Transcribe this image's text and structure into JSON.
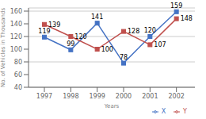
{
  "chart_data": {
    "type": "line",
    "xlabel": "Years",
    "ylabel": "No. of Vehicles in Thousands",
    "x": [
      1997,
      1998,
      1999,
      2000,
      2001,
      2002
    ],
    "xlim": [
      1996.4,
      2002.7
    ],
    "xticks": [
      1997,
      1998,
      1999,
      2000,
      2001,
      2002
    ],
    "ylim": [
      40,
      165
    ],
    "yticks": [
      40,
      60,
      80,
      100,
      120,
      140,
      160
    ],
    "series": [
      {
        "name": "X",
        "color": "#4472C4",
        "marker": "square",
        "values": [
          119,
          99,
          141,
          78,
          120,
          159
        ]
      },
      {
        "name": "Y",
        "color": "#C0504D",
        "marker": "square",
        "values": [
          139,
          120,
          100,
          128,
          107,
          148
        ]
      }
    ],
    "data_labels": true,
    "grid": true,
    "legend": "lower right"
  }
}
